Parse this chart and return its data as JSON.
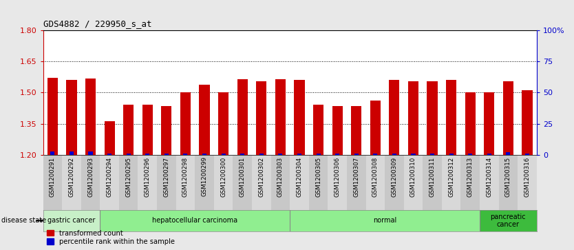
{
  "title": "GDS4882 / 229950_s_at",
  "samples": [
    "GSM1200291",
    "GSM1200292",
    "GSM1200293",
    "GSM1200294",
    "GSM1200295",
    "GSM1200296",
    "GSM1200297",
    "GSM1200298",
    "GSM1200299",
    "GSM1200300",
    "GSM1200301",
    "GSM1200302",
    "GSM1200303",
    "GSM1200304",
    "GSM1200305",
    "GSM1200306",
    "GSM1200307",
    "GSM1200308",
    "GSM1200309",
    "GSM1200310",
    "GSM1200311",
    "GSM1200312",
    "GSM1200313",
    "GSM1200314",
    "GSM1200315",
    "GSM1200316"
  ],
  "transformed_count": [
    1.572,
    1.562,
    1.568,
    1.362,
    1.44,
    1.44,
    1.435,
    1.5,
    1.537,
    1.5,
    1.563,
    1.555,
    1.563,
    1.562,
    1.44,
    1.435,
    1.435,
    1.46,
    1.562,
    1.555,
    1.555,
    1.562,
    1.5,
    1.5,
    1.555,
    1.51
  ],
  "percentile_rank": [
    3,
    3,
    3,
    1,
    1,
    1,
    1,
    1,
    1,
    1,
    1,
    1,
    1,
    1,
    1,
    1,
    1,
    1,
    1,
    1,
    1,
    1,
    1,
    1,
    2,
    1
  ],
  "disease_groups": [
    {
      "label": "gastric cancer",
      "start": 0,
      "end": 3,
      "color": "#c8f0c8"
    },
    {
      "label": "hepatocellular carcinoma",
      "start": 3,
      "end": 13,
      "color": "#90ee90"
    },
    {
      "label": "normal",
      "start": 13,
      "end": 23,
      "color": "#90ee90"
    },
    {
      "label": "pancreatic\ncancer",
      "start": 23,
      "end": 26,
      "color": "#3dbb3d"
    }
  ],
  "ylim_left": [
    1.2,
    1.8
  ],
  "yticks_left": [
    1.2,
    1.35,
    1.5,
    1.65,
    1.8
  ],
  "ylim_right": [
    0,
    100
  ],
  "yticks_right": [
    0,
    25,
    50,
    75,
    100
  ],
  "ytick_labels_right": [
    "0",
    "25",
    "50",
    "75",
    "100%"
  ],
  "bar_color": "#cc0000",
  "percentile_color": "#0000cc",
  "axis_left_color": "#cc0000",
  "axis_right_color": "#0000cc",
  "bg_color": "#e8e8e8",
  "plot_bg": "#ffffff",
  "grid_color": "#000000",
  "bar_bottom": 1.2
}
